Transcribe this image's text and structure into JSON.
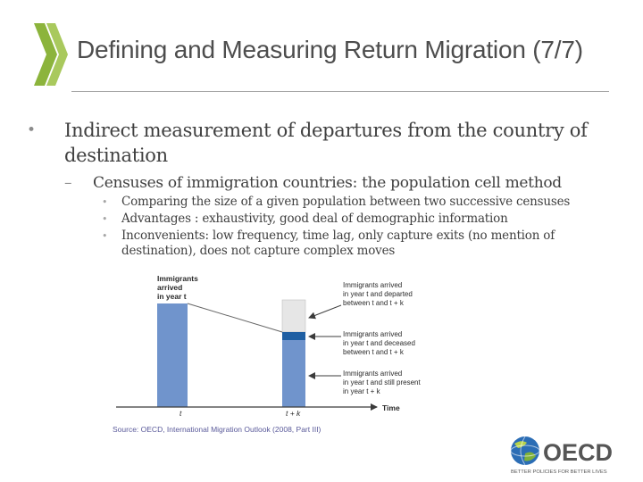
{
  "slide": {
    "title": "Defining and Measuring Return Migration (7/7)"
  },
  "bullets": {
    "level1": "Indirect measurement of departures from the country of destination",
    "level2": "Censuses of immigration countries: the population cell method",
    "level3": [
      "Comparing the size of a given population between two successive censuses",
      "Advantages : exhaustivity, good deal of demographic information",
      "Inconvenients: low frequency, time lag, only capture exits (no mention of destination), does not capture complex moves"
    ]
  },
  "diagram": {
    "left_bar_label": [
      "Immigrants",
      "arrived",
      "in year t"
    ],
    "annotations": {
      "departed": [
        "Immigrants arrived",
        "in year t and departed",
        "between t and t + k"
      ],
      "deceased": [
        "Immigrants arrived",
        "in year t and deceased",
        "between t and t + k"
      ],
      "present": [
        "Immigrants arrived",
        "in year t and still present",
        "in year t + k"
      ]
    },
    "x_tick_t": "t",
    "x_tick_tk": "t + k",
    "axis_label": "Time",
    "source": "Source: OECD, International Migration Outlook (2008, Part III)",
    "colors": {
      "bar_blue": "#7094cc",
      "dark_blue": "#1f5fa3",
      "gray": "#e6e6e6",
      "arrow": "#3b3b3b",
      "source_text": "#5a5a9a"
    }
  },
  "logo": {
    "wordmark": "OECD",
    "tagline": "BETTER POLICIES FOR BETTER LIVES",
    "colors": {
      "globe": "#2b6db5",
      "text": "#555555"
    }
  },
  "decor": {
    "chevron_color": "#8cb43c",
    "chevron_icon": "double-chevron-icon"
  }
}
